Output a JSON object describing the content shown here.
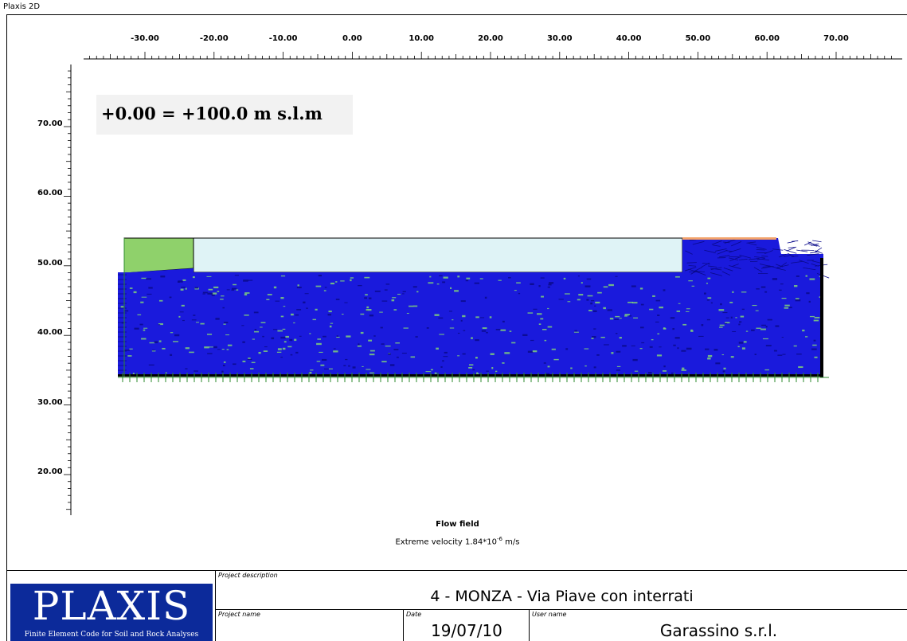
{
  "window": {
    "title": "Plaxis 2D"
  },
  "axes": {
    "x_ticks": [
      "-30.00",
      "-20.00",
      "-10.00",
      "0.00",
      "10.00",
      "20.00",
      "30.00",
      "40.00",
      "50.00",
      "60.00",
      "70.00"
    ],
    "y_ticks": [
      "70.00",
      "60.00",
      "50.00",
      "40.00",
      "30.00",
      "20.00"
    ]
  },
  "annotation": {
    "elevation_reference": "+0.00 = +100.0 m s.l.m"
  },
  "plot": {
    "title": "Flow field",
    "subtitle_prefix": "Extreme velocity 1.84*10",
    "subtitle_exponent": "-6",
    "subtitle_unit": " m/s",
    "colors": {
      "flow_arrows": "#1a1adc",
      "soil_green": "#8fd16b",
      "excavation": "#dff3f6",
      "mesh_line": "#2e8b2e"
    }
  },
  "titleblock": {
    "logo_word": "PLAXIS",
    "logo_tagline": "Finite Element Code for Soil and Rock Analyses",
    "project_description_label": "Project description",
    "project_description": "4 - MONZA - Via Piave con interrati",
    "project_name_label": "Project name",
    "project_name": "",
    "date_label": "Date",
    "date": "19/07/10",
    "user_name_label": "User name",
    "user_name": "Garassino s.r.l."
  }
}
